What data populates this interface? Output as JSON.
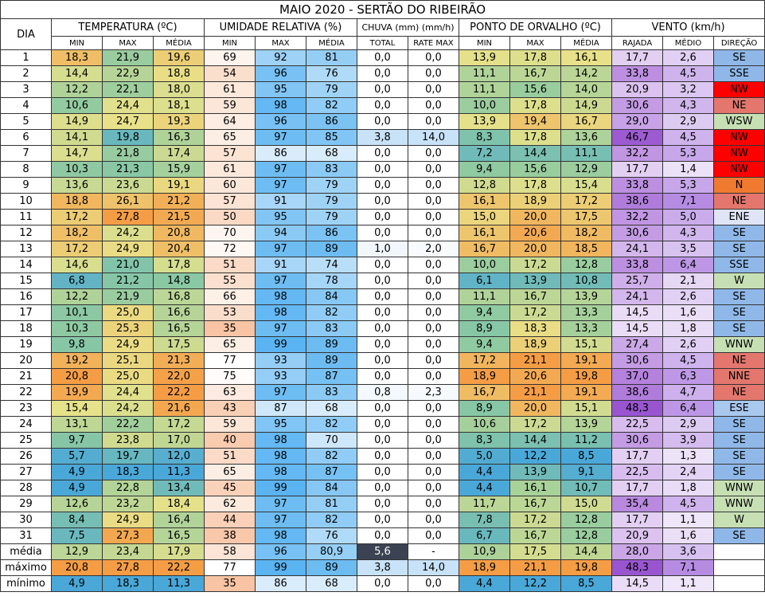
{
  "title": "MAIO 2020 - SERTÃO DO RIBEIRÃO",
  "header": {
    "day": "DIA",
    "groups": [
      {
        "label": "TEMPERATURA (ºC)",
        "columns": [
          "MIN",
          "MAX",
          "MÉDIA"
        ]
      },
      {
        "label": "UMIDADE RELATIVA (%)",
        "columns": [
          "MIN",
          "MAX",
          "MÉDIA"
        ]
      },
      {
        "label": "CHUVA (mm) (mm/h)",
        "columns": [
          "TOTAL",
          "RATE MAX"
        ]
      },
      {
        "label": "PONTO DE ORVALHO (ºC)",
        "columns": [
          "MIN",
          "MAX",
          "MÉDIA"
        ]
      },
      {
        "label": "VENTO (km/h)",
        "columns": [
          "RAJADA",
          "MÉDIO",
          "DIREÇÃO"
        ]
      }
    ]
  },
  "table": {
    "rows": [
      [
        "1",
        "18,3",
        "21,9",
        "19,6",
        "69",
        "92",
        "81",
        "0,0",
        "0,0",
        "13,9",
        "17,8",
        "16,1",
        "17,7",
        "2,6",
        "SE"
      ],
      [
        "2",
        "14,4",
        "22,9",
        "18,8",
        "54",
        "96",
        "76",
        "0,0",
        "0,0",
        "11,1",
        "16,7",
        "14,2",
        "33,8",
        "4,5",
        "SSE"
      ],
      [
        "3",
        "12,2",
        "22,1",
        "18,0",
        "61",
        "95",
        "79",
        "0,0",
        "0,0",
        "11,1",
        "15,6",
        "14,0",
        "20,9",
        "3,2",
        "NW"
      ],
      [
        "4",
        "10,6",
        "24,4",
        "18,1",
        "59",
        "98",
        "82",
        "0,0",
        "0,0",
        "10,0",
        "17,8",
        "14,9",
        "30,6",
        "4,3",
        "NE"
      ],
      [
        "5",
        "14,9",
        "24,7",
        "19,3",
        "64",
        "96",
        "86",
        "0,0",
        "0,0",
        "13,9",
        "19,4",
        "16,7",
        "29,0",
        "2,9",
        "WSW"
      ],
      [
        "6",
        "14,1",
        "19,8",
        "16,3",
        "65",
        "97",
        "85",
        "3,8",
        "14,0",
        "8,3",
        "17,8",
        "13,6",
        "46,7",
        "4,5",
        "NW"
      ],
      [
        "7",
        "14,7",
        "21,8",
        "17,4",
        "57",
        "86",
        "68",
        "0,0",
        "0,0",
        "7,2",
        "14,4",
        "11,1",
        "32,2",
        "5,3",
        "NW"
      ],
      [
        "8",
        "10,3",
        "21,3",
        "15,9",
        "61",
        "97",
        "83",
        "0,0",
        "0,0",
        "9,4",
        "15,6",
        "12,9",
        "17,7",
        "1,4",
        "NW"
      ],
      [
        "9",
        "13,6",
        "23,6",
        "19,1",
        "60",
        "97",
        "79",
        "0,0",
        "0,0",
        "12,8",
        "17,8",
        "15,4",
        "33,8",
        "5,3",
        "N"
      ],
      [
        "10",
        "18,8",
        "26,1",
        "21,2",
        "57",
        "91",
        "79",
        "0,0",
        "0,0",
        "16,1",
        "18,9",
        "17,2",
        "38,6",
        "7,1",
        "NE"
      ],
      [
        "11",
        "17,2",
        "27,8",
        "21,5",
        "50",
        "95",
        "79",
        "0,0",
        "0,0",
        "15,0",
        "20,0",
        "17,5",
        "32,2",
        "5,0",
        "ENE"
      ],
      [
        "12",
        "18,2",
        "24,2",
        "20,8",
        "70",
        "94",
        "86",
        "0,0",
        "0,0",
        "16,1",
        "20,6",
        "18,2",
        "30,6",
        "4,3",
        "SE"
      ],
      [
        "13",
        "17,2",
        "24,9",
        "20,4",
        "72",
        "97",
        "89",
        "1,0",
        "2,0",
        "16,7",
        "20,0",
        "18,5",
        "24,1",
        "3,5",
        "SE"
      ],
      [
        "14",
        "14,6",
        "21,0",
        "17,8",
        "51",
        "91",
        "74",
        "0,0",
        "0,0",
        "10,0",
        "17,2",
        "12,8",
        "33,8",
        "6,4",
        "SSE"
      ],
      [
        "15",
        "6,8",
        "21,2",
        "14,8",
        "55",
        "97",
        "78",
        "0,0",
        "0,0",
        "6,1",
        "13,9",
        "10,8",
        "25,7",
        "2,1",
        "W"
      ],
      [
        "16",
        "12,2",
        "21,9",
        "16,8",
        "66",
        "98",
        "84",
        "0,0",
        "0,0",
        "11,1",
        "16,7",
        "13,9",
        "24,1",
        "2,6",
        "SE"
      ],
      [
        "17",
        "10,1",
        "25,0",
        "16,6",
        "53",
        "98",
        "82",
        "0,0",
        "0,0",
        "9,4",
        "17,2",
        "13,3",
        "14,5",
        "1,6",
        "SE"
      ],
      [
        "18",
        "10,3",
        "25,3",
        "16,5",
        "35",
        "97",
        "83",
        "0,0",
        "0,0",
        "8,9",
        "18,3",
        "13,3",
        "14,5",
        "1,8",
        "SE"
      ],
      [
        "19",
        "9,8",
        "24,9",
        "17,5",
        "65",
        "99",
        "89",
        "0,0",
        "0,0",
        "9,4",
        "18,9",
        "15,1",
        "27,4",
        "2,6",
        "WNW"
      ],
      [
        "20",
        "19,2",
        "25,1",
        "21,3",
        "77",
        "93",
        "89",
        "0,0",
        "0,0",
        "17,2",
        "21,1",
        "19,1",
        "30,6",
        "4,5",
        "NE"
      ],
      [
        "21",
        "20,8",
        "25,0",
        "22,0",
        "75",
        "93",
        "87",
        "0,0",
        "0,0",
        "18,9",
        "20,6",
        "19,8",
        "37,0",
        "6,3",
        "NNE"
      ],
      [
        "22",
        "19,9",
        "24,4",
        "22,2",
        "63",
        "97",
        "83",
        "0,8",
        "2,3",
        "16,7",
        "21,1",
        "19,1",
        "38,6",
        "4,7",
        "NE"
      ],
      [
        "23",
        "15,4",
        "24,2",
        "21,6",
        "43",
        "87",
        "68",
        "0,0",
        "0,0",
        "8,9",
        "20,0",
        "15,1",
        "48,3",
        "6,4",
        "ESE"
      ],
      [
        "24",
        "13,1",
        "22,2",
        "17,2",
        "59",
        "95",
        "82",
        "0,0",
        "0,0",
        "10,6",
        "17,2",
        "13,9",
        "22,5",
        "2,9",
        "SE"
      ],
      [
        "25",
        "9,7",
        "23,8",
        "17,0",
        "40",
        "98",
        "70",
        "0,0",
        "0,0",
        "8,3",
        "14,4",
        "11,2",
        "30,6",
        "3,9",
        "SE"
      ],
      [
        "26",
        "5,7",
        "19,7",
        "12,0",
        "51",
        "98",
        "82",
        "0,0",
        "0,0",
        "5,0",
        "12,2",
        "8,5",
        "17,7",
        "1,3",
        "SE"
      ],
      [
        "27",
        "4,9",
        "18,3",
        "11,3",
        "65",
        "98",
        "87",
        "0,0",
        "0,0",
        "4,4",
        "13,9",
        "9,1",
        "22,5",
        "2,4",
        "SE"
      ],
      [
        "28",
        "4,9",
        "22,8",
        "13,4",
        "45",
        "99",
        "84",
        "0,0",
        "0,0",
        "4,4",
        "16,1",
        "10,7",
        "17,7",
        "1,8",
        "WNW"
      ],
      [
        "29",
        "12,6",
        "23,2",
        "18,4",
        "62",
        "97",
        "81",
        "0,0",
        "0,0",
        "11,7",
        "16,7",
        "15,0",
        "35,4",
        "4,5",
        "WNW"
      ],
      [
        "30",
        "8,4",
        "24,9",
        "16,4",
        "44",
        "97",
        "82",
        "0,0",
        "0,0",
        "7,8",
        "17,2",
        "12,8",
        "17,7",
        "1,1",
        "W"
      ],
      [
        "31",
        "7,5",
        "27,3",
        "16,5",
        "38",
        "98",
        "76",
        "0,0",
        "0,0",
        "6,7",
        "16,7",
        "12,8",
        "20,9",
        "1,6",
        "SE"
      ]
    ],
    "direction_colors": [
      "#8fb8e8",
      "#8fb8e8",
      "#ff0000",
      "#e3776d",
      "#c6e0b4",
      "#ff0000",
      "#ff0000",
      "#ff0000",
      "#f07a30",
      "#e3776d",
      "#dfe5f6",
      "#8fb8e8",
      "#8fb8e8",
      "#8fb8e8",
      "#c6e0b4",
      "#8fb8e8",
      "#8fb8e8",
      "#8fb8e8",
      "#c6e0b4",
      "#e3776d",
      "#e3776d",
      "#e3776d",
      "#a9c8ee",
      "#8fb8e8",
      "#8fb8e8",
      "#8fb8e8",
      "#8fb8e8",
      "#c6e0b4",
      "#c6e0b4",
      "#c6e0b4",
      "#8fb8e8"
    ]
  },
  "summary": {
    "rows": [
      [
        "média",
        "12,9",
        "23,4",
        "17,9",
        "58",
        "96",
        "80,9",
        "5,6",
        "-",
        "10,9",
        "17,5",
        "14,4",
        "28,0",
        "3,6"
      ],
      [
        "máximo",
        "20,8",
        "27,8",
        "22,2",
        "77",
        "99",
        "89",
        "3,8",
        "14,0",
        "18,9",
        "21,1",
        "19,8",
        "48,3",
        "7,1"
      ],
      [
        "mínimo",
        "4,9",
        "18,3",
        "11,3",
        "35",
        "86",
        "68",
        "0,0",
        "0,0",
        "4,4",
        "12,2",
        "8,5",
        "14,5",
        "1,1"
      ]
    ]
  }
}
